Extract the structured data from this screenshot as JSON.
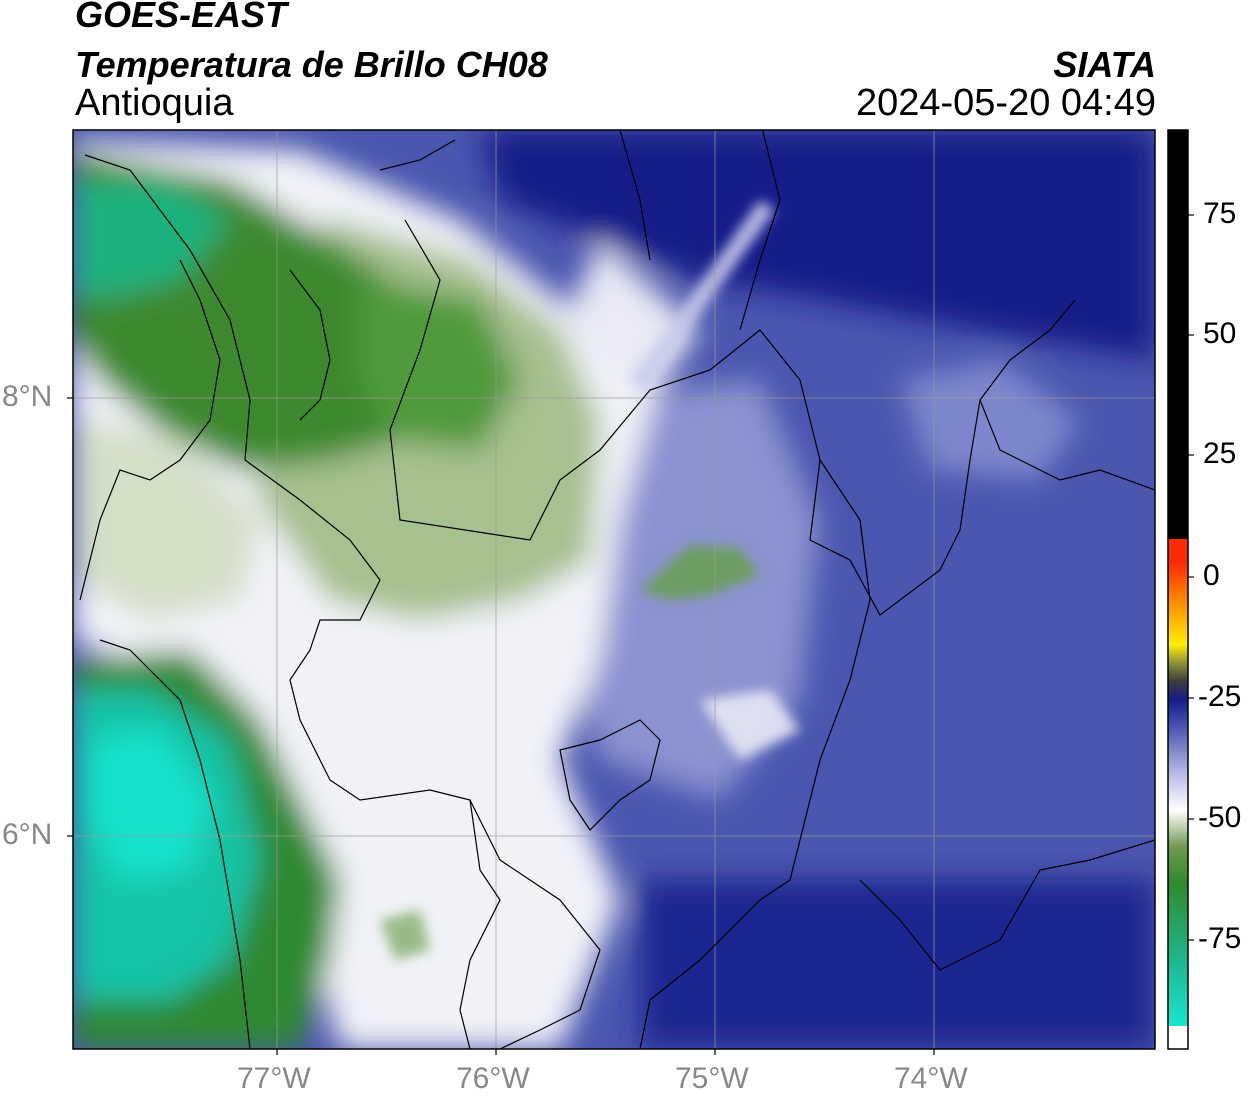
{
  "header": {
    "title_line1": "GOES-EAST",
    "title_line2": "Temperatura de Brillo CH08",
    "region": "Antioquia",
    "brand": "SIATA",
    "datetime": "2024-05-20 04:49"
  },
  "map": {
    "lat_labels": [
      "8°N",
      "6°N"
    ],
    "lon_labels": [
      "77°W",
      "76°W",
      "75°W",
      "74°W"
    ],
    "gridlines": true
  },
  "colorbar": {
    "ticks": [
      "75",
      "50",
      "25",
      "0",
      "-25",
      "-50",
      "-75"
    ],
    "colors": {
      "cold_cyan": "#19d9c7",
      "green": "#3a8a2a",
      "white": "#ffffff",
      "light_blue": "#9aa0d6",
      "mid_blue": "#4a56b0",
      "dark_blue": "#1a1f8a",
      "red": "#ff2a00",
      "orange": "#ff9900",
      "yellow": "#ffee00",
      "black": "#000000"
    }
  }
}
